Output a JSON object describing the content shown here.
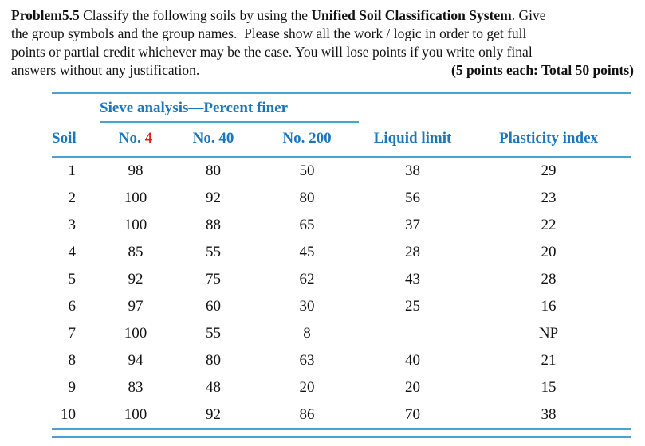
{
  "problem": {
    "line1_bold1": "Problem5.5",
    "line1_text1": " Classify the following soils by using the ",
    "line1_bold2": "Unified Soil Classification System",
    "line1_text2": ". Give",
    "line2": "the group symbols and the group names.  Please show all the work / logic in order to get full",
    "line3": "points or partial credit whichever may be the case. You will lose points if you write only final",
    "line4": "answers without any justification.",
    "points_note": "(5 points each: Total 50 points)"
  },
  "table": {
    "span_header": "Sieve analysis—Percent finer",
    "headers": {
      "soil": "Soil",
      "no4_prefix": "No.",
      "no4_red": "4",
      "no40": "No. 40",
      "no200": "No. 200",
      "liquid_limit": "Liquid limit",
      "plasticity_index": "Plasticity index"
    },
    "rows": [
      {
        "soil": "1",
        "no4": "98",
        "no40": "80",
        "no200": "50",
        "liquid_limit": "38",
        "plasticity_index": "29"
      },
      {
        "soil": "2",
        "no4": "100",
        "no40": "92",
        "no200": "80",
        "liquid_limit": "56",
        "plasticity_index": "23"
      },
      {
        "soil": "3",
        "no4": "100",
        "no40": "88",
        "no200": "65",
        "liquid_limit": "37",
        "plasticity_index": "22"
      },
      {
        "soil": "4",
        "no4": "85",
        "no40": "55",
        "no200": "45",
        "liquid_limit": "28",
        "plasticity_index": "20"
      },
      {
        "soil": "5",
        "no4": "92",
        "no40": "75",
        "no200": "62",
        "liquid_limit": "43",
        "plasticity_index": "28"
      },
      {
        "soil": "6",
        "no4": "97",
        "no40": "60",
        "no200": "30",
        "liquid_limit": "25",
        "plasticity_index": "16"
      },
      {
        "soil": "7",
        "no4": "100",
        "no40": "55",
        "no200": "8",
        "liquid_limit": "—",
        "plasticity_index": "NP"
      },
      {
        "soil": "8",
        "no4": "94",
        "no40": "80",
        "no200": "63",
        "liquid_limit": "40",
        "plasticity_index": "21"
      },
      {
        "soil": "9",
        "no4": "83",
        "no40": "48",
        "no200": "20",
        "liquid_limit": "20",
        "plasticity_index": "15"
      },
      {
        "soil": "10",
        "no4": "100",
        "no40": "92",
        "no200": "86",
        "liquid_limit": "70",
        "plasticity_index": "38"
      }
    ],
    "colors": {
      "header_blue": "#1b76bb",
      "rule_blue": "#47a3d4",
      "annotation_red": "#e01e1e"
    }
  }
}
